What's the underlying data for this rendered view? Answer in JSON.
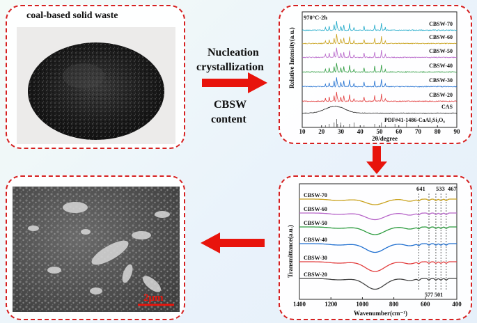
{
  "waste_panel": {
    "title": "coal-based solid waste"
  },
  "process": {
    "line1": "Nucleation",
    "line2": "crystallization",
    "line3": "CBSW",
    "line4": "content"
  },
  "xrd": {
    "annotation": "970°C-2h",
    "ylabel": "Relative Intensity(a.u.)",
    "xlabel": "2θ/degree",
    "pdf_label": "PDF#41-1486-CaAl₂Si₂O₈"
  },
  "ftir": {
    "ylabel": "Transmittance(a.u.)",
    "xlabel": "Wavenumber(cm⁻¹)",
    "peak_labels_top": [
      "641",
      "533",
      "467"
    ],
    "peak_labels_bottom": "577  501"
  },
  "sem": {
    "scale_label": "2μm"
  },
  "colors": {
    "border": "#d62020",
    "arrow": "#e8140c",
    "cbsw70": "#1aa8c8",
    "cbsw60": "#c9a21c",
    "cbsw50": "#b664c8",
    "cbsw40": "#2a9a3c",
    "cbsw30": "#1f6fd0",
    "cbsw20": "#e23c3c",
    "cas": "#222222",
    "ftir70": "#c9a21c",
    "ftir60": "#b664c8",
    "ftir50": "#2a9a3c",
    "ftir40": "#1f6fd0",
    "ftir30": "#e23c3c",
    "ftir20": "#444444"
  },
  "chart_data": [
    {
      "type": "line",
      "title": "",
      "xlabel": "2θ/degree",
      "ylabel": "Relative Intensity(a.u.)",
      "xlim": [
        10,
        90
      ],
      "x_ticks": [
        10,
        20,
        30,
        40,
        50,
        60,
        70,
        80,
        90
      ],
      "series": [
        {
          "name": "CBSW-70"
        },
        {
          "name": "CBSW-60"
        },
        {
          "name": "CBSW-50"
        },
        {
          "name": "CBSW-40"
        },
        {
          "name": "CBSW-30"
        },
        {
          "name": "CBSW-20"
        },
        {
          "name": "CAS"
        }
      ],
      "reference": "PDF#41-1486-CaAl₂Si₂O₈"
    },
    {
      "type": "line",
      "title": "",
      "xlabel": "Wavenumber(cm⁻¹)",
      "ylabel": "Transmittance(a.u.)",
      "xlim": [
        1400,
        400
      ],
      "x_ticks": [
        1400,
        1200,
        1000,
        800,
        600,
        400
      ],
      "series": [
        {
          "name": "CBSW-70"
        },
        {
          "name": "CBSW-60"
        },
        {
          "name": "CBSW-50"
        },
        {
          "name": "CBSW-40"
        },
        {
          "name": "CBSW-30"
        },
        {
          "name": "CBSW-20"
        }
      ],
      "peaks": [
        641,
        577,
        533,
        501,
        467
      ]
    }
  ]
}
